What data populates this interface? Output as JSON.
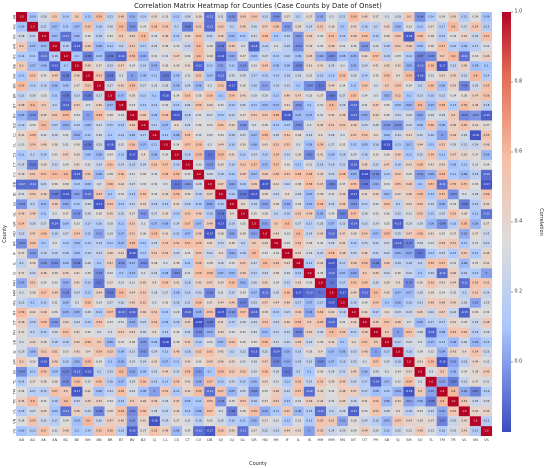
{
  "chart_data": {
    "type": "heatmap",
    "title": "Correlation Matrix Heatmap for Counties (Case Counts by Date of Onset)",
    "xlabel": "County",
    "ylabel": "County",
    "colorbar": {
      "label": "Correlation",
      "ticks": [
        "0.0",
        "0.2",
        "0.4",
        "0.6",
        "0.8",
        "1.0"
      ],
      "range": [
        -0.2,
        1.0
      ],
      "low_color": "#3b4cc0",
      "mid_color": "#dddddd",
      "high_color": "#b40426"
    },
    "counties": [
      "AB",
      "AG",
      "AK",
      "AN",
      "BC",
      "BE",
      "BH",
      "BN",
      "BR",
      "BT",
      "BV",
      "BZ",
      "CJ",
      "CL",
      "CS",
      "CT",
      "CV",
      "DB",
      "DJ",
      "GJ",
      "GL",
      "GR",
      "HD",
      "HR",
      "IF",
      "IL",
      "IS",
      "MH",
      "MM",
      "MS",
      "NT",
      "OT",
      "PH",
      "SB",
      "SJ",
      "SM",
      "SV",
      "TL",
      "TM",
      "TR",
      "VL",
      "VN",
      "VS"
    ],
    "row_tick_labels": [
      "AB",
      "AG",
      "AK",
      "AN",
      "BC",
      "BE",
      "BH",
      "BN",
      "BR",
      "BT",
      "BV",
      "BZ",
      "CJ",
      "CL",
      "CS",
      "CT",
      "CV",
      "DB",
      "DJ",
      "GJ",
      "GL",
      "GR",
      "HD",
      "HR",
      "IF",
      "IL",
      "IS",
      "MH",
      "MM",
      "MS",
      "NT",
      "OT",
      "PH",
      "SB",
      "SJ",
      "SM",
      "SV",
      "TL",
      "TM",
      "TR",
      "VL",
      "VN",
      "VS"
    ],
    "value_range": [
      -0.2,
      1.0
    ],
    "diagonal": 1.0,
    "grid": false,
    "legend": "right colorbar"
  }
}
